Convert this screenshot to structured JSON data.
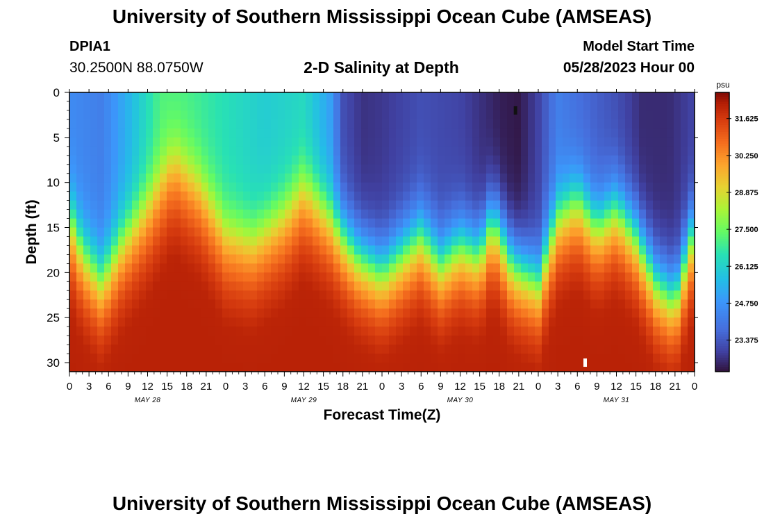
{
  "header": {
    "title": "University of Southern Mississippi Ocean Cube (AMSEAS)",
    "station_id": "DPIA1",
    "coords": "30.2500N  88.0750W",
    "plot_title": "2-D Salinity at Depth",
    "model_start_label": "Model Start Time",
    "model_start_value": "05/28/2023 Hour 00"
  },
  "footer": {
    "title": "University of Southern Mississippi Ocean Cube (AMSEAS)"
  },
  "chart_data": {
    "type": "heatmap",
    "title": "2-D Salinity at Depth",
    "xlabel": "Forecast Time(Z)",
    "ylabel": "Depth (ft)",
    "x_range_hours": [
      0,
      96
    ],
    "y_range_ft": [
      0,
      31
    ],
    "y_ticks": [
      0,
      5,
      10,
      15,
      20,
      25,
      30
    ],
    "x_ticks": [
      {
        "h": 0,
        "label": "0"
      },
      {
        "h": 3,
        "label": "3"
      },
      {
        "h": 6,
        "label": "6"
      },
      {
        "h": 9,
        "label": "9"
      },
      {
        "h": 12,
        "label": "12"
      },
      {
        "h": 15,
        "label": "15"
      },
      {
        "h": 18,
        "label": "18"
      },
      {
        "h": 21,
        "label": "21"
      },
      {
        "h": 24,
        "label": "0"
      },
      {
        "h": 27,
        "label": "3"
      },
      {
        "h": 30,
        "label": "6"
      },
      {
        "h": 33,
        "label": "9"
      },
      {
        "h": 36,
        "label": "12"
      },
      {
        "h": 39,
        "label": "15"
      },
      {
        "h": 42,
        "label": "18"
      },
      {
        "h": 45,
        "label": "21"
      },
      {
        "h": 48,
        "label": "0"
      },
      {
        "h": 51,
        "label": "3"
      },
      {
        "h": 54,
        "label": "6"
      },
      {
        "h": 57,
        "label": "9"
      },
      {
        "h": 60,
        "label": "12"
      },
      {
        "h": 63,
        "label": "15"
      },
      {
        "h": 66,
        "label": "18"
      },
      {
        "h": 69,
        "label": "21"
      },
      {
        "h": 72,
        "label": "0"
      },
      {
        "h": 75,
        "label": "3"
      },
      {
        "h": 78,
        "label": "6"
      },
      {
        "h": 81,
        "label": "9"
      },
      {
        "h": 84,
        "label": "12"
      },
      {
        "h": 87,
        "label": "15"
      },
      {
        "h": 90,
        "label": "18"
      },
      {
        "h": 93,
        "label": "21"
      },
      {
        "h": 96,
        "label": "0"
      }
    ],
    "day_labels": [
      {
        "h": 12,
        "label": "MAY 28"
      },
      {
        "h": 36,
        "label": "MAY 29"
      },
      {
        "h": 60,
        "label": "MAY 30"
      },
      {
        "h": 84,
        "label": "MAY 31"
      }
    ],
    "colorbar": {
      "unit": "psu",
      "min": 22.2,
      "max": 32.6,
      "tick_values": [
        31.625,
        30.25,
        28.875,
        27.5,
        26.125,
        24.75,
        23.375
      ],
      "tick_labels": [
        "31.625",
        "30.250",
        "28.875",
        "27.500",
        "26.125",
        "24.750",
        "23.375"
      ]
    },
    "halocline_depth_ft": {
      "hours": [
        0,
        2,
        5,
        8,
        12,
        16,
        20,
        24,
        28,
        33,
        36,
        40,
        44,
        48,
        51,
        54,
        57,
        60,
        63,
        65,
        68,
        72,
        75,
        78,
        81,
        84,
        87,
        90,
        93,
        96
      ],
      "values": [
        14,
        18,
        21,
        17,
        13,
        8,
        11,
        16,
        17,
        14,
        11,
        14,
        18,
        20,
        18,
        16,
        19,
        17,
        18,
        14,
        19,
        21,
        14,
        12,
        15,
        13,
        16,
        21,
        23,
        15
      ]
    },
    "surface_salinity_psu": {
      "hours": [
        0,
        5,
        9,
        14,
        18,
        24,
        30,
        36,
        40,
        42,
        45,
        48,
        54,
        60,
        66,
        69,
        72,
        75,
        78,
        84,
        88,
        92,
        96
      ],
      "values": [
        24.5,
        24.2,
        25.4,
        27.1,
        27.0,
        26.5,
        26.0,
        26.3,
        25.0,
        23.2,
        22.7,
        22.8,
        23.2,
        23.0,
        22.4,
        22.3,
        23.0,
        24.2,
        23.8,
        23.2,
        22.6,
        22.6,
        23.0
      ]
    },
    "bottom_salinity_psu": 31.5,
    "markers": [
      {
        "h": 68.5,
        "depth_ft": 2,
        "color": "#111111"
      },
      {
        "h": 79.2,
        "depth_ft": 30,
        "color": "#ffffff"
      }
    ]
  }
}
